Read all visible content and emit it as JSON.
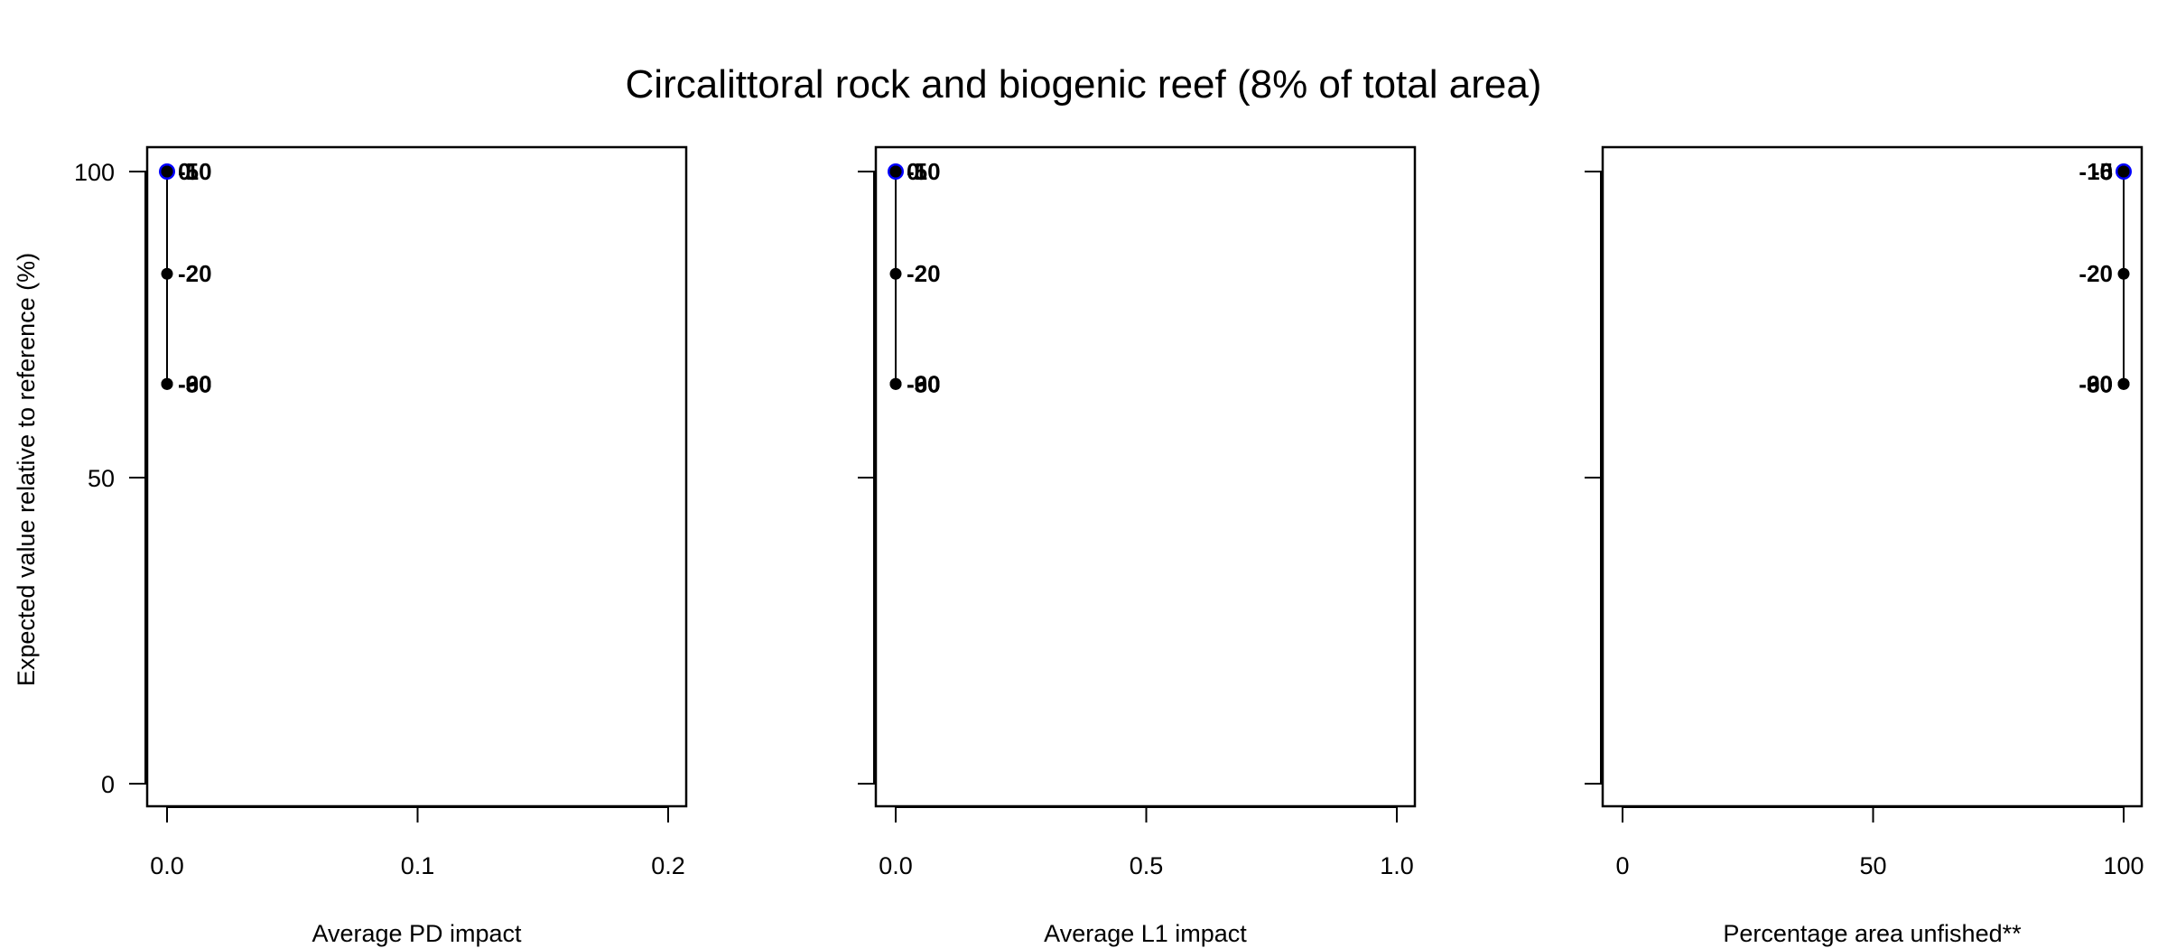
{
  "figure": {
    "title": "Circalittoral rock and biogenic reef (8% of total area)",
    "ylabel": "Expected value relative to reference (%)"
  },
  "colors": {
    "reference_point": "#0000ff",
    "points": "#000000"
  },
  "chart_data": [
    {
      "type": "scatter",
      "xlabel": "Average PD impact",
      "xlim": [
        0,
        0.2
      ],
      "xticks": [
        "0.0",
        "0.1",
        "0.2"
      ],
      "xtick_values": [
        0,
        0.1,
        0.2
      ],
      "ylim": [
        0,
        100
      ],
      "yticks": [
        "0",
        "50",
        "100"
      ],
      "ytick_values": [
        0,
        50,
        100
      ],
      "show_y_tick_labels": true,
      "label_side": "right",
      "points": [
        {
          "label": "0",
          "x": 0.0,
          "y": 100,
          "reference": true
        },
        {
          "label": "-5",
          "x": 0.0,
          "y": 100
        },
        {
          "label": "-10",
          "x": 0.0,
          "y": 100
        },
        {
          "label": "-20",
          "x": 0.0,
          "y": 83.3
        },
        {
          "label": "-30",
          "x": 0.0,
          "y": 65.3
        },
        {
          "label": "-60",
          "x": 0.0,
          "y": 65.3
        },
        {
          "label": "-90",
          "x": 0.0,
          "y": 65.3
        }
      ]
    },
    {
      "type": "scatter",
      "xlabel": "Average L1 impact",
      "xlim": [
        0,
        1.0
      ],
      "xticks": [
        "0.0",
        "0.5",
        "1.0"
      ],
      "xtick_values": [
        0,
        0.5,
        1.0
      ],
      "ylim": [
        0,
        100
      ],
      "yticks": [
        "0",
        "50",
        "100"
      ],
      "ytick_values": [
        0,
        50,
        100
      ],
      "show_y_tick_labels": false,
      "label_side": "right",
      "points": [
        {
          "label": "0",
          "x": 0.0,
          "y": 100,
          "reference": true
        },
        {
          "label": "-5",
          "x": 0.0,
          "y": 100
        },
        {
          "label": "-10",
          "x": 0.0,
          "y": 100
        },
        {
          "label": "-20",
          "x": 0.0,
          "y": 83.3
        },
        {
          "label": "-30",
          "x": 0.0,
          "y": 65.3
        },
        {
          "label": "-60",
          "x": 0.0,
          "y": 65.3
        },
        {
          "label": "-90",
          "x": 0.0,
          "y": 65.3
        }
      ]
    },
    {
      "type": "scatter",
      "xlabel": "Percentage area unfished**",
      "xlim": [
        0,
        100
      ],
      "xticks": [
        "0",
        "50",
        "100"
      ],
      "xtick_values": [
        0,
        50,
        100
      ],
      "ylim": [
        0,
        100
      ],
      "yticks": [
        "0",
        "50",
        "100"
      ],
      "ytick_values": [
        0,
        50,
        100
      ],
      "show_y_tick_labels": false,
      "label_side": "left",
      "points": [
        {
          "label": "0",
          "x": 100,
          "y": 100,
          "reference": true
        },
        {
          "label": "-5",
          "x": 100,
          "y": 100
        },
        {
          "label": "-10",
          "x": 100,
          "y": 100
        },
        {
          "label": "-20",
          "x": 100,
          "y": 83.3
        },
        {
          "label": "-30",
          "x": 100,
          "y": 65.3
        },
        {
          "label": "-60",
          "x": 100,
          "y": 65.3
        },
        {
          "label": "-90",
          "x": 100,
          "y": 65.3
        }
      ]
    }
  ]
}
